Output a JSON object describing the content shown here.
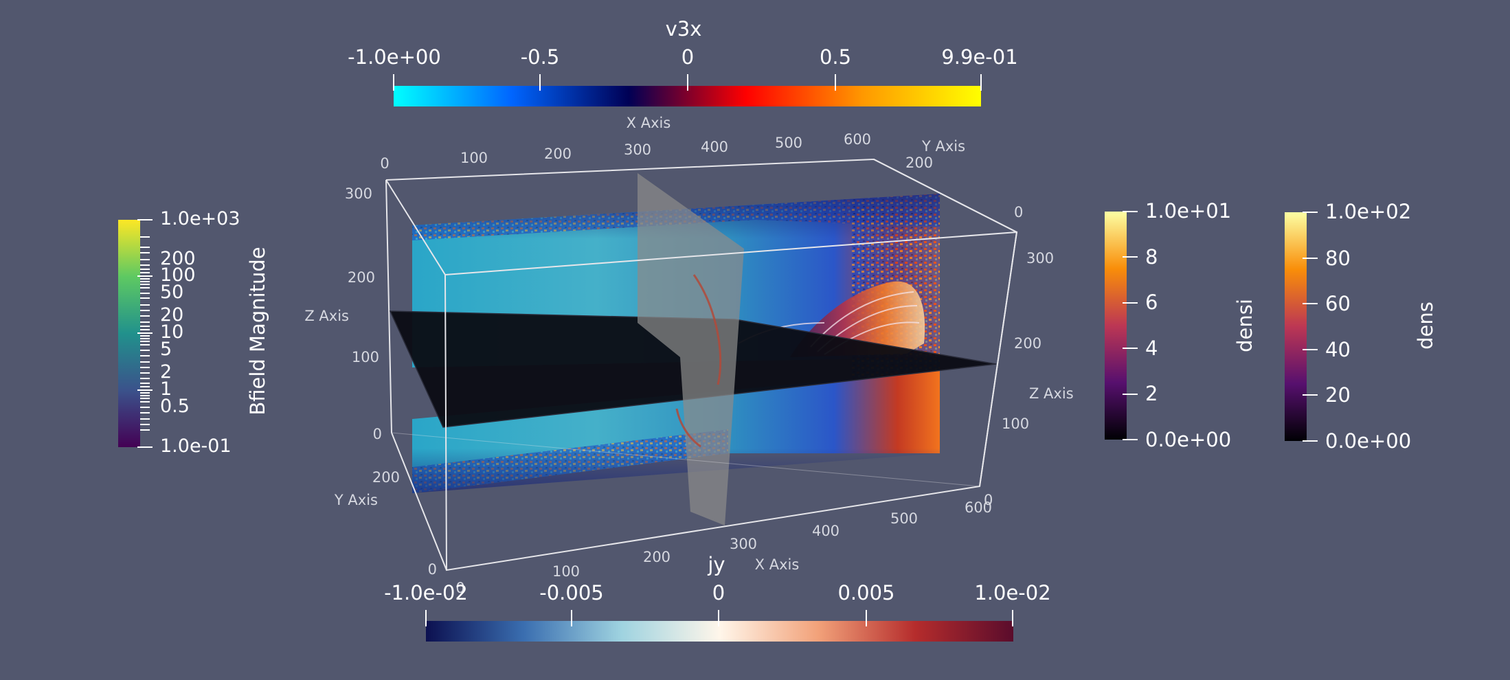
{
  "colorbars": {
    "v3x": {
      "title": "v3x",
      "ticks": [
        "-1.0e+00",
        "-0.5",
        "0",
        "0.5",
        "9.9e-01"
      ],
      "range": [
        -1.0,
        0.99
      ],
      "colors": [
        "#00ffff",
        "#0066ff",
        "#000055",
        "#ff0000",
        "#ff9900",
        "#ffff00"
      ]
    },
    "jy": {
      "title": "jy",
      "ticks": [
        "-1.0e-02",
        "-0.005",
        "0",
        "0.005",
        "1.0e-02"
      ],
      "range": [
        -0.01,
        0.01
      ],
      "colors": [
        "#0c1050",
        "#3a6eb0",
        "#9fd3e0",
        "#fff6ea",
        "#f2a27a",
        "#b52c2c",
        "#5a0c2c"
      ]
    },
    "bfield": {
      "title": "Bfield Magnitude",
      "ticks": [
        "1.0e+03",
        "200",
        "100",
        "50",
        "20",
        "10",
        "5",
        "2",
        "1",
        "0.5",
        "1.0e-01"
      ],
      "range": [
        0.1,
        1000
      ],
      "scale": "log",
      "colors": [
        "#fde725",
        "#5ec962",
        "#21918c",
        "#3b528b",
        "#440154"
      ]
    },
    "densi": {
      "title": "densi",
      "ticks": [
        "1.0e+01",
        "8",
        "6",
        "4",
        "2",
        "0.0e+00"
      ],
      "range": [
        0,
        10
      ],
      "colors": [
        "#fcffa4",
        "#f98e09",
        "#bc3754",
        "#57106e",
        "#000004"
      ]
    },
    "dens": {
      "title": "dens",
      "ticks": [
        "1.0e+02",
        "80",
        "60",
        "40",
        "20",
        "0.0e+00"
      ],
      "range": [
        0,
        100
      ],
      "colors": [
        "#fcffa4",
        "#f98e09",
        "#bc3754",
        "#57106e",
        "#000004"
      ]
    }
  },
  "axes": {
    "x_title": "X Axis",
    "y_title": "Y Axis",
    "z_title": "Z Axis",
    "top_x_ticks": [
      "0",
      "100",
      "200",
      "300",
      "400",
      "500",
      "600"
    ],
    "bottom_x_ticks": [
      "0",
      "100",
      "200",
      "300",
      "400",
      "500",
      "600"
    ],
    "left_z_ticks": [
      "300",
      "200",
      "100",
      "0"
    ],
    "right_z_ticks": [
      "0",
      "300",
      "200",
      "100",
      "0"
    ],
    "y_ticks_left": [
      "200",
      "0"
    ],
    "y_tick_top_right": "200"
  },
  "colors": {
    "background": "#52576e",
    "frame": "#e6e6ea"
  }
}
